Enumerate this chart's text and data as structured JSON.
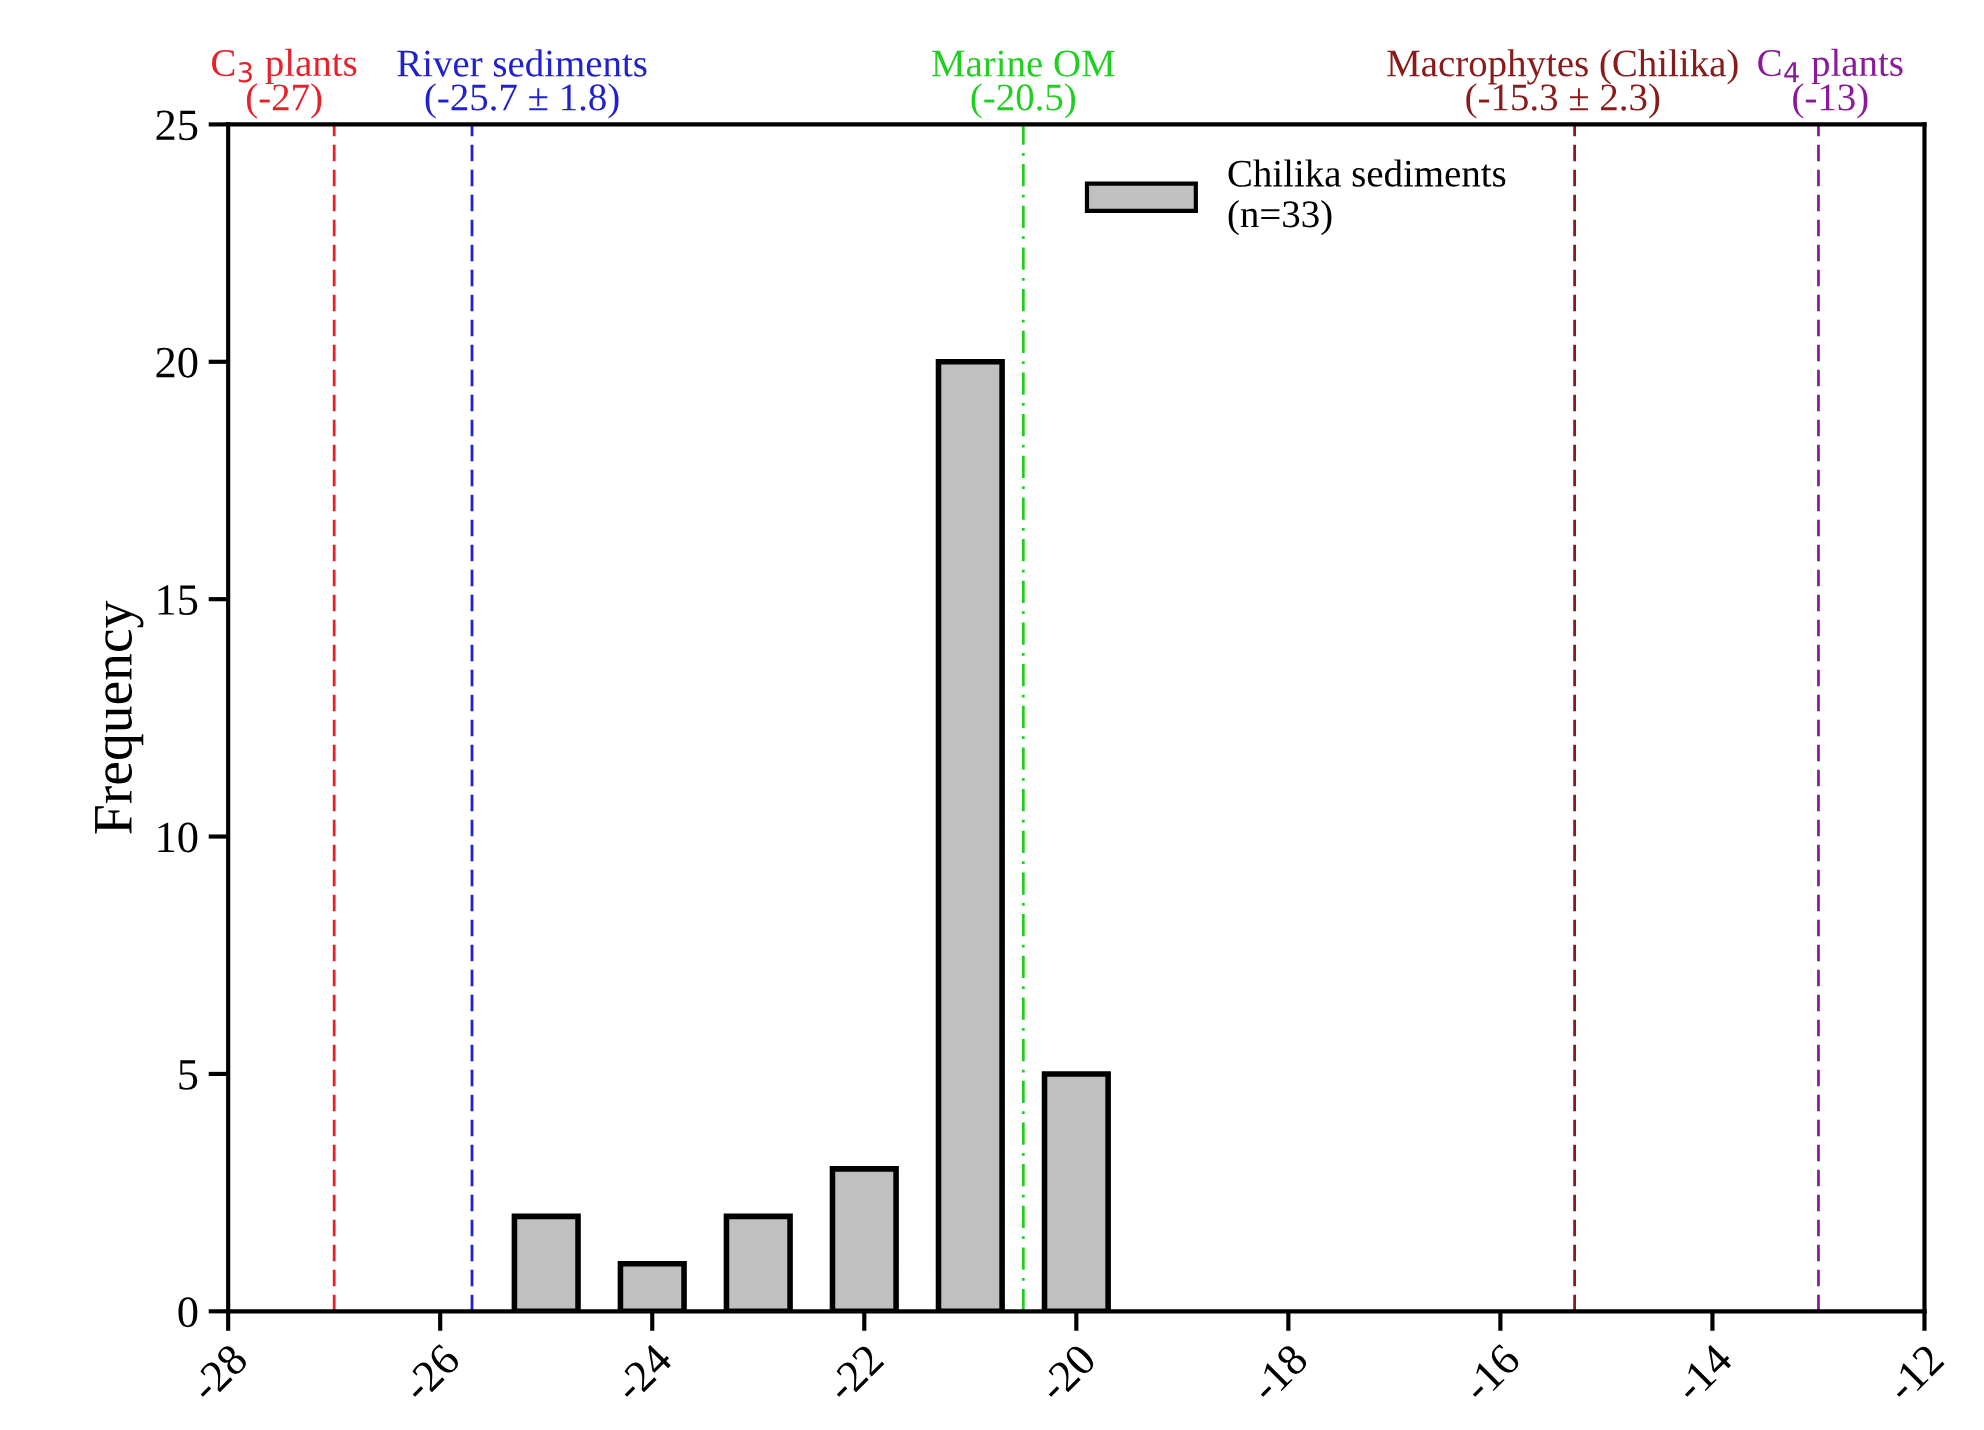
{
  "chart_data": {
    "type": "bar",
    "x": [
      -25,
      -24,
      -23,
      -22,
      -21,
      -20
    ],
    "series": [
      {
        "name": "Chilika sediments\n(n=33)",
        "color": "#c0c0c0",
        "values": [
          2,
          1,
          2,
          3,
          20,
          5
        ]
      }
    ],
    "ylabel": "Frequency",
    "xlim": [
      -28,
      -12
    ],
    "xticks": [
      -28,
      -26,
      -24,
      -22,
      -20,
      -18,
      -16,
      -14,
      -12
    ],
    "ylim": [
      0,
      25
    ],
    "yticks": [
      0,
      5,
      10,
      15,
      20,
      25
    ],
    "grid": false,
    "legend": "top",
    "ref_lines": [
      {
        "axis": "x",
        "value": -27,
        "label": "C$_{3}$ plants\n(-27)",
        "color": "#e8202a",
        "line_style": "dashed"
      },
      {
        "axis": "x",
        "value": -25.7,
        "label": "River sediments\n(-25.7 ± 1.8)",
        "color": "#2020d0",
        "line_style": "dashed"
      },
      {
        "axis": "x",
        "value": -20.5,
        "label": "Marine OM\n(-20.5)",
        "color": "#20d020",
        "line_style": "dashdot"
      },
      {
        "axis": "x",
        "value": -15.3,
        "label": "Macrophytes (Chilika)\n(-15.3 ± 2.3)",
        "color": "#8b1a1a",
        "line_style": "dashed"
      },
      {
        "axis": "x",
        "value": -13,
        "label": "C$_{4}$ plants\n(-13)",
        "color": "#8b1a9a",
        "line_style": "dashed"
      }
    ]
  }
}
